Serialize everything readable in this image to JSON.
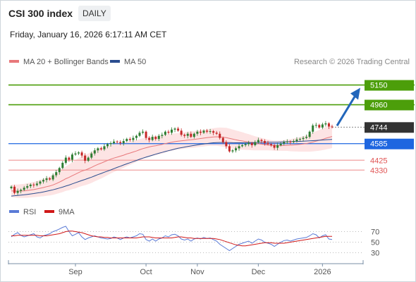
{
  "header": {
    "title": "CSI 300 index",
    "period": "DAILY",
    "datetime": "Friday, January 16, 2026 6:17:11 AM CET"
  },
  "legend": {
    "ma20_label": "MA 20 + Bollinger Bands",
    "ma50_label": "MA 50",
    "source": "Research © 2026 Trading Central"
  },
  "rsi_legend": {
    "rsi_label": "RSI",
    "ma9_label": "9MA"
  },
  "colors": {
    "target": "#4c9e0a",
    "last": "#333333",
    "pivot": "#1e66e0",
    "support": "#e05252",
    "candle_up": "#2e7d32",
    "candle_down": "#c62828",
    "ma20": "#e8787b",
    "ma50": "#2a4d8f",
    "bollinger": "#fde4e4",
    "rsi": "#5a7ad6",
    "rsi_ma": "#d01818",
    "arrow": "#2266bb"
  },
  "chart_data": [
    {
      "type": "candlestick",
      "title": "CSI 300 index",
      "x_tick_labels": [
        "Sep",
        "Oct",
        "Nov",
        "Dec",
        "2026"
      ],
      "ylim": [
        4060,
        5310
      ],
      "levels": [
        {
          "label": "5150",
          "value": 5150,
          "kind": "target"
        },
        {
          "label": "4960",
          "value": 4960,
          "kind": "target"
        },
        {
          "label": "4744",
          "value": 4744,
          "kind": "last"
        },
        {
          "label": "4585",
          "value": 4585,
          "kind": "pivot"
        },
        {
          "label": "4425",
          "value": 4425,
          "kind": "support"
        },
        {
          "label": "4330",
          "value": 4330,
          "kind": "support"
        }
      ],
      "series": [
        {
          "name": "MA 20 + Bollinger Bands"
        },
        {
          "name": "MA 50"
        }
      ],
      "close": [
        4170,
        4110,
        4130,
        4140,
        4160,
        4175,
        4190,
        4185,
        4200,
        4220,
        4235,
        4250,
        4240,
        4280,
        4310,
        4350,
        4400,
        4450,
        4430,
        4480,
        4490,
        4500,
        4470,
        4420,
        4450,
        4490,
        4520,
        4540,
        4530,
        4560,
        4580,
        4590,
        4605,
        4600,
        4590,
        4610,
        4630,
        4620,
        4640,
        4660,
        4690,
        4700,
        4640,
        4620,
        4650,
        4630,
        4660,
        4670,
        4700,
        4690,
        4720,
        4730,
        4710,
        4670,
        4660,
        4680,
        4650,
        4680,
        4700,
        4690,
        4710,
        4700,
        4705,
        4690,
        4680,
        4640,
        4600,
        4560,
        4510,
        4520,
        4540,
        4560,
        4570,
        4580,
        4590,
        4570,
        4600,
        4620,
        4610,
        4590,
        4580,
        4570,
        4545,
        4570,
        4585,
        4600,
        4605,
        4600,
        4610,
        4625,
        4630,
        4640,
        4650,
        4700,
        4760,
        4765,
        4740,
        4770,
        4780,
        4750,
        4744
      ],
      "ma20": [
        4130,
        4128,
        4127,
        4128,
        4130,
        4133,
        4138,
        4142,
        4148,
        4155,
        4162,
        4170,
        4177,
        4187,
        4200,
        4214,
        4230,
        4247,
        4260,
        4276,
        4290,
        4306,
        4320,
        4330,
        4342,
        4356,
        4371,
        4385,
        4397,
        4410,
        4423,
        4436,
        4446,
        4455,
        4464,
        4474,
        4485,
        4494,
        4504,
        4514,
        4526,
        4537,
        4545,
        4553,
        4560,
        4565,
        4571,
        4577,
        4585,
        4591,
        4598,
        4604,
        4608,
        4612,
        4616,
        4620,
        4622,
        4626,
        4630,
        4634,
        4638,
        4642,
        4646,
        4649,
        4651,
        4650,
        4647,
        4643,
        4636,
        4629,
        4622,
        4616,
        4611,
        4605,
        4600,
        4593,
        4588,
        4584,
        4580,
        4576,
        4572,
        4569,
        4566,
        4565,
        4566,
        4567,
        4569,
        4570,
        4572,
        4575,
        4578,
        4582,
        4586,
        4592,
        4600,
        4609,
        4617,
        4626,
        4637,
        4645,
        4654
      ],
      "ma50": [
        4080,
        4083,
        4086,
        4089,
        4092,
        4096,
        4100,
        4104,
        4109,
        4114,
        4120,
        4126,
        4133,
        4140,
        4148,
        4157,
        4166,
        4176,
        4186,
        4197,
        4208,
        4219,
        4230,
        4240,
        4251,
        4262,
        4274,
        4286,
        4297,
        4309,
        4320,
        4332,
        4344,
        4356,
        4367,
        4379,
        4390,
        4401,
        4412,
        4423,
        4434,
        4445,
        4455,
        4464,
        4474,
        4483,
        4492,
        4500,
        4509,
        4517,
        4525,
        4533,
        4540,
        4546,
        4552,
        4558,
        4563,
        4568,
        4573,
        4578,
        4582,
        4586,
        4590,
        4593,
        4595,
        4596,
        4596,
        4596,
        4595,
        4594,
        4593,
        4593,
        4593,
        4594,
        4594,
        4595,
        4596,
        4597,
        4598,
        4598,
        4598,
        4598,
        4598,
        4599,
        4600,
        4602,
        4603,
        4604,
        4605,
        4606,
        4607,
        4608,
        4610,
        4612,
        4614,
        4616,
        4618,
        4620,
        4622,
        4624,
        4626
      ],
      "bb_half_width": [
        60,
        62,
        64,
        66,
        68,
        70,
        72,
        74,
        76,
        80,
        84,
        88,
        92,
        96,
        100,
        106,
        112,
        118,
        124,
        130,
        136,
        140,
        144,
        146,
        148,
        150,
        150,
        150,
        148,
        146,
        142,
        138,
        134,
        130,
        126,
        122,
        118,
        114,
        110,
        106,
        102,
        100,
        98,
        96,
        94,
        92,
        90,
        88,
        86,
        84,
        82,
        80,
        80,
        80,
        80,
        80,
        80,
        80,
        80,
        80,
        80,
        80,
        82,
        84,
        86,
        90,
        92,
        94,
        94,
        92,
        90,
        88,
        84,
        80,
        76,
        72,
        68,
        64,
        60,
        56,
        52,
        50,
        50,
        50,
        50,
        52,
        54,
        58,
        62,
        66,
        70,
        74,
        78,
        84,
        90,
        96,
        100,
        104,
        108,
        110,
        112
      ]
    },
    {
      "type": "line",
      "title": "RSI",
      "ylim": [
        20,
        84
      ],
      "y_tick_labels": [
        "70",
        "50",
        "30"
      ],
      "y_ticks": [
        70,
        50,
        30
      ],
      "series": [
        {
          "name": "RSI",
          "values": [
            60,
            65,
            68,
            63,
            60,
            62,
            64,
            66,
            60,
            58,
            62,
            64,
            66,
            70,
            72,
            75,
            78,
            80,
            70,
            62,
            65,
            68,
            60,
            55,
            58,
            60,
            62,
            60,
            58,
            57,
            56,
            57,
            60,
            58,
            55,
            58,
            60,
            58,
            60,
            62,
            66,
            65,
            55,
            52,
            56,
            52,
            56,
            58,
            62,
            60,
            64,
            65,
            62,
            56,
            54,
            56,
            52,
            56,
            58,
            56,
            59,
            57,
            58,
            55,
            52,
            46,
            42,
            38,
            34,
            38,
            42,
            46,
            48,
            50,
            52,
            48,
            52,
            56,
            54,
            50,
            48,
            46,
            42,
            46,
            50,
            53,
            54,
            52,
            54,
            56,
            57,
            58,
            59,
            62,
            66,
            64,
            58,
            62,
            64,
            56,
            55
          ]
        },
        {
          "name": "9MA",
          "values": [
            62,
            62,
            63,
            63,
            63,
            63,
            63,
            63,
            63,
            62,
            62,
            62,
            63,
            64,
            65,
            66,
            68,
            70,
            71,
            71,
            70,
            69,
            68,
            66,
            64,
            62,
            61,
            60,
            60,
            59,
            59,
            58,
            58,
            58,
            58,
            58,
            58,
            58,
            58,
            58,
            59,
            60,
            60,
            60,
            59,
            58,
            58,
            58,
            58,
            58,
            58,
            59,
            60,
            60,
            59,
            58,
            58,
            57,
            57,
            57,
            57,
            57,
            57,
            57,
            56,
            55,
            53,
            51,
            49,
            47,
            45,
            44,
            43,
            43,
            44,
            45,
            46,
            47,
            48,
            49,
            49,
            49,
            48,
            48,
            48,
            48,
            49,
            50,
            51,
            52,
            53,
            54,
            55,
            56,
            57,
            58,
            59,
            60,
            61,
            61,
            61
          ]
        }
      ]
    }
  ]
}
